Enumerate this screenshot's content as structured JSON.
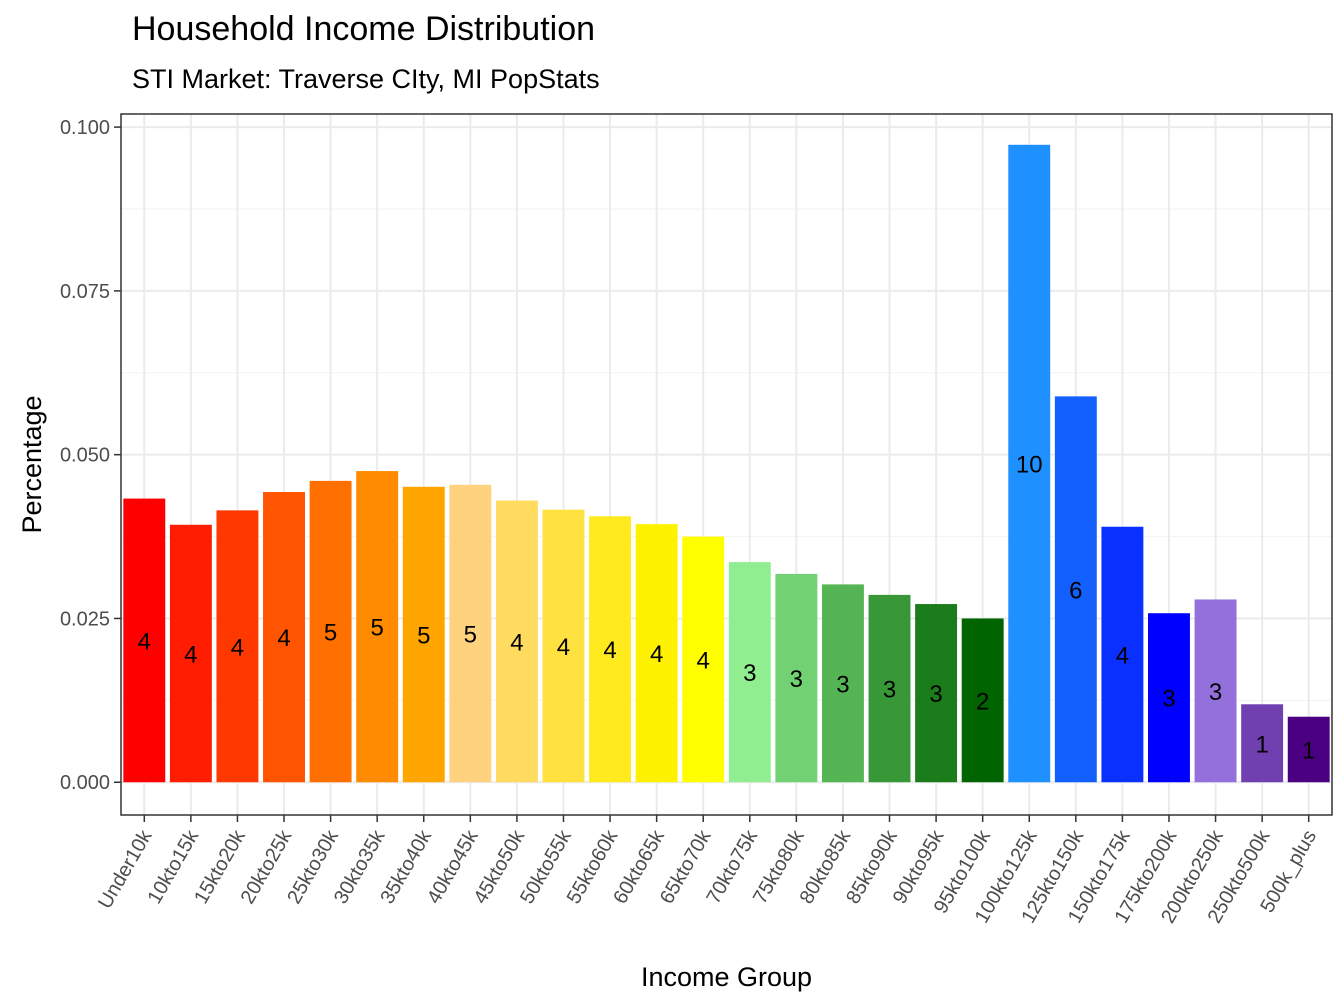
{
  "chart_data": {
    "type": "bar",
    "title": "Household Income Distribution",
    "subtitle": "STI Market: Traverse CIty, MI PopStats",
    "xlabel": "Income Group",
    "ylabel": "Percentage",
    "ylim": [
      -0.005,
      0.102
    ],
    "yticks": [
      "0.000",
      "0.025",
      "0.050",
      "0.075",
      "0.100"
    ],
    "ytick_values": [
      0,
      0.025,
      0.05,
      0.075,
      0.1
    ],
    "grid": true,
    "legend": "none",
    "categories": [
      "Under10k",
      "10kto15k",
      "15kto20k",
      "20kto25k",
      "25kto30k",
      "30kto35k",
      "35kto40k",
      "40kto45k",
      "45kto50k",
      "50kto55k",
      "55kto60k",
      "60kto65k",
      "65kto70k",
      "70kto75k",
      "75kto80k",
      "80kto85k",
      "85kto90k",
      "90kto95k",
      "95kto100k",
      "100kto125k",
      "125kto150k",
      "150kto175k",
      "175kto200k",
      "200kto250k",
      "250kto500k",
      "500k_plus"
    ],
    "values": [
      0.0433,
      0.0393,
      0.0415,
      0.0443,
      0.046,
      0.0475,
      0.0451,
      0.0454,
      0.043,
      0.0416,
      0.0406,
      0.0394,
      0.0375,
      0.0336,
      0.0318,
      0.0302,
      0.0286,
      0.0272,
      0.025,
      0.0973,
      0.0589,
      0.039,
      0.0258,
      0.0279,
      0.0119,
      0.01
    ],
    "labels": [
      "4",
      "4",
      "4",
      "4",
      "5",
      "5",
      "5",
      "5",
      "4",
      "4",
      "4",
      "4",
      "4",
      "3",
      "3",
      "3",
      "3",
      "3",
      "2",
      "10",
      "6",
      "4",
      "3",
      "3",
      "1",
      "1"
    ],
    "colors": [
      "#FF0000",
      "#FF1C00",
      "#FF3800",
      "#FF5400",
      "#FF7000",
      "#FF8C00",
      "#FFA500",
      "#FFD27F",
      "#FFDB5F",
      "#FFE23F",
      "#FFEA20",
      "#FFF200",
      "#FFFF00",
      "#90EE90",
      "#72D172",
      "#55B555",
      "#389838",
      "#1B7C1B",
      "#006400",
      "#1E90FF",
      "#1460FF",
      "#0A30FF",
      "#0000FF",
      "#9370DB",
      "#7040B0",
      "#4B0082"
    ]
  }
}
